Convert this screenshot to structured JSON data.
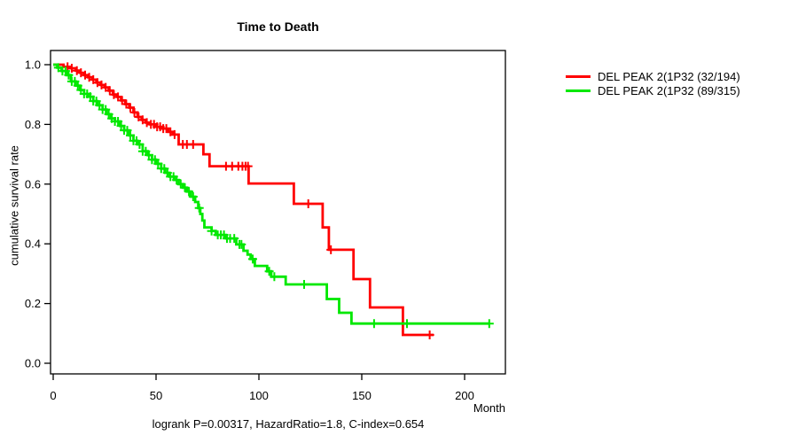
{
  "title": "Time to Death",
  "axes": {
    "x_unit_label": "Month",
    "y_label": "cumulative survival rate"
  },
  "footer_stats": "logrank P=0.00317, HazardRatio=1.8, C-index=0.654",
  "legend": [
    {
      "label": "DEL PEAK 2(1P32 (32/194)",
      "color": "#ff0000"
    },
    {
      "label": "DEL PEAK 2(1P32 (89/315)",
      "color": "#00e800"
    }
  ],
  "chart_data": {
    "type": "line",
    "subtype": "kaplan-meier-step",
    "title": "Time to Death",
    "xlabel": "Month",
    "ylabel": "cumulative survival rate",
    "xlim": [
      0,
      220
    ],
    "ylim": [
      0.0,
      1.0
    ],
    "x_ticks": [
      0,
      50,
      100,
      150,
      200
    ],
    "y_ticks": [
      "0.0",
      "0.2",
      "0.4",
      "0.6",
      "0.8",
      "1.0"
    ],
    "grid": false,
    "legend_position": "right-outside",
    "series": [
      {
        "name": "DEL PEAK 2(1P32 (32/194)",
        "color": "#ff0000",
        "steps": [
          [
            0,
            1.0
          ],
          [
            5,
            0.993
          ],
          [
            8,
            0.988
          ],
          [
            11,
            0.98
          ],
          [
            13,
            0.973
          ],
          [
            15,
            0.965
          ],
          [
            17,
            0.958
          ],
          [
            19,
            0.95
          ],
          [
            21,
            0.94
          ],
          [
            23,
            0.932
          ],
          [
            25,
            0.924
          ],
          [
            27,
            0.913
          ],
          [
            29,
            0.9
          ],
          [
            31,
            0.892
          ],
          [
            33,
            0.88
          ],
          [
            35,
            0.868
          ],
          [
            37,
            0.856
          ],
          [
            39,
            0.84
          ],
          [
            41,
            0.825
          ],
          [
            43,
            0.815
          ],
          [
            45,
            0.806
          ],
          [
            47,
            0.8
          ],
          [
            50,
            0.792
          ],
          [
            53,
            0.786
          ],
          [
            56,
            0.775
          ],
          [
            58,
            0.766
          ],
          [
            61,
            0.733
          ],
          [
            73,
            0.7
          ],
          [
            76,
            0.66
          ],
          [
            95,
            0.602
          ],
          [
            117,
            0.534
          ],
          [
            131,
            0.455
          ],
          [
            134,
            0.38
          ],
          [
            146,
            0.282
          ],
          [
            154,
            0.187
          ],
          [
            170,
            0.095
          ]
        ],
        "end_month": 185,
        "censor_months": [
          7,
          9,
          11.5,
          13.5,
          15.5,
          17.5,
          19.5,
          21.5,
          23.5,
          25.5,
          27.5,
          29.5,
          31.5,
          33.5,
          35.5,
          37.5,
          39.5,
          41.5,
          43.5,
          45.5,
          47.5,
          49,
          50.5,
          52,
          53.5,
          55,
          57,
          59,
          63,
          65,
          68,
          84,
          87,
          90,
          92,
          93.5,
          94.7,
          124,
          135,
          183
        ]
      },
      {
        "name": "DEL PEAK 2(1P32 (89/315)",
        "color": "#00e800",
        "steps": [
          [
            0,
            1.0
          ],
          [
            2,
            0.99
          ],
          [
            4,
            0.979
          ],
          [
            6.5,
            0.965
          ],
          [
            8.6,
            0.944
          ],
          [
            11,
            0.93
          ],
          [
            13,
            0.915
          ],
          [
            15,
            0.902
          ],
          [
            17,
            0.893
          ],
          [
            19.5,
            0.878
          ],
          [
            21.5,
            0.864
          ],
          [
            24,
            0.85
          ],
          [
            26,
            0.834
          ],
          [
            28,
            0.82
          ],
          [
            30,
            0.81
          ],
          [
            32.5,
            0.795
          ],
          [
            34.5,
            0.78
          ],
          [
            37,
            0.763
          ],
          [
            39,
            0.745
          ],
          [
            41,
            0.733
          ],
          [
            43.5,
            0.71
          ],
          [
            46,
            0.697
          ],
          [
            48,
            0.682
          ],
          [
            50,
            0.668
          ],
          [
            52.5,
            0.652
          ],
          [
            54.5,
            0.638
          ],
          [
            56.5,
            0.625
          ],
          [
            59,
            0.614
          ],
          [
            61,
            0.6
          ],
          [
            63,
            0.588
          ],
          [
            65,
            0.575
          ],
          [
            67,
            0.558
          ],
          [
            69,
            0.54
          ],
          [
            70.5,
            0.52
          ],
          [
            71.5,
            0.5
          ],
          [
            72.5,
            0.478
          ],
          [
            73.5,
            0.455
          ],
          [
            77,
            0.443
          ],
          [
            79,
            0.43
          ],
          [
            84,
            0.418
          ],
          [
            89,
            0.398
          ],
          [
            92.5,
            0.377
          ],
          [
            94.5,
            0.364
          ],
          [
            96,
            0.349
          ],
          [
            98,
            0.326
          ],
          [
            104,
            0.308
          ],
          [
            106,
            0.29
          ],
          [
            113,
            0.264
          ],
          [
            133,
            0.215
          ],
          [
            139,
            0.169
          ],
          [
            145,
            0.133
          ]
        ],
        "end_month": 212,
        "censor_months": [
          2.5,
          4.5,
          6,
          7.5,
          9,
          10.5,
          12,
          13.5,
          15,
          16.5,
          18,
          19.5,
          21,
          22.5,
          24,
          25.5,
          27,
          28.5,
          30,
          31.5,
          33,
          34.5,
          36,
          37.5,
          39,
          40.5,
          42,
          43.5,
          45,
          46.5,
          48,
          49.5,
          51,
          52.5,
          54,
          55.5,
          57,
          58.5,
          60,
          62,
          64,
          66,
          68,
          71,
          77,
          80,
          81.5,
          83,
          84.5,
          86,
          88,
          90.5,
          91.5,
          97,
          105,
          107.5,
          122,
          156,
          172,
          212
        ]
      }
    ]
  }
}
